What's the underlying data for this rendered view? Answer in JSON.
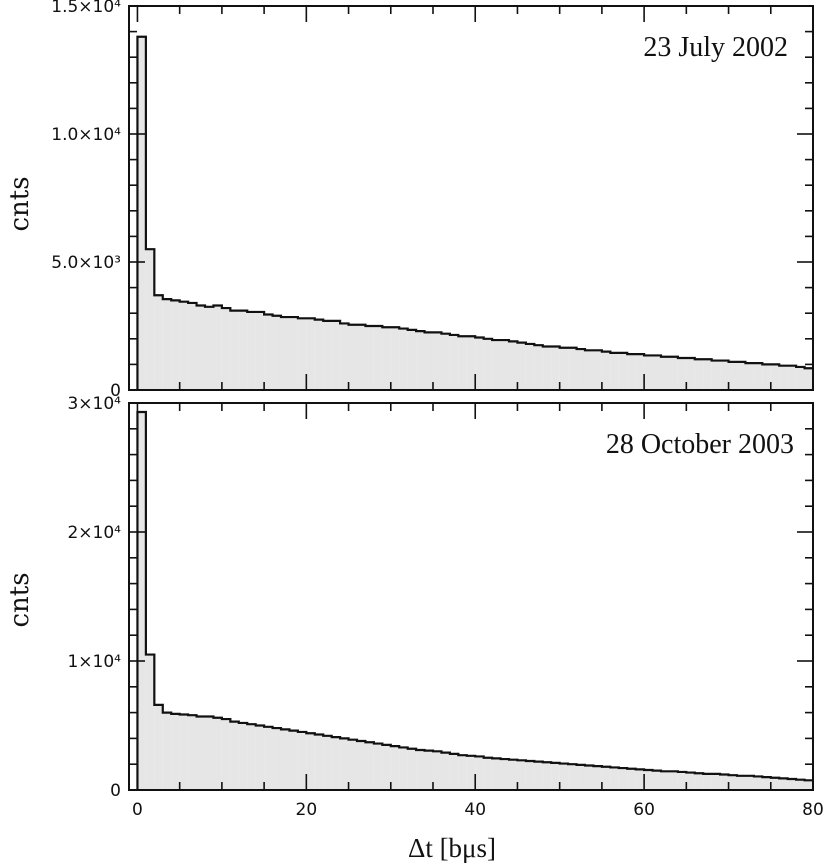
{
  "chart_data": [
    {
      "type": "area",
      "title": "23 July 2002",
      "xlabel": "",
      "ylabel": "cnts",
      "xlim": [
        -1,
        80
      ],
      "ylim": [
        0,
        15000
      ],
      "y_ticks": [
        {
          "value": 0,
          "label": "0"
        },
        {
          "value": 5000,
          "label": "5.0×10³"
        },
        {
          "value": 10000,
          "label": "1.0×10⁴"
        },
        {
          "value": 15000,
          "label": "1.5×10⁴"
        }
      ],
      "bin_width": 1,
      "bins_start": 0,
      "values": [
        13800,
        5500,
        3700,
        3550,
        3500,
        3450,
        3400,
        3300,
        3250,
        3300,
        3200,
        3100,
        3100,
        3050,
        3050,
        2950,
        2900,
        2850,
        2850,
        2800,
        2800,
        2750,
        2700,
        2700,
        2600,
        2550,
        2550,
        2500,
        2500,
        2450,
        2450,
        2400,
        2350,
        2300,
        2250,
        2250,
        2200,
        2150,
        2100,
        2100,
        2050,
        2000,
        1950,
        1950,
        1900,
        1850,
        1800,
        1750,
        1700,
        1700,
        1650,
        1650,
        1600,
        1550,
        1550,
        1500,
        1450,
        1450,
        1400,
        1400,
        1350,
        1350,
        1300,
        1300,
        1250,
        1250,
        1200,
        1200,
        1150,
        1150,
        1100,
        1100,
        1050,
        1050,
        1000,
        1000,
        950,
        950,
        900,
        850
      ]
    },
    {
      "type": "area",
      "title": "28 October 2003",
      "xlabel": "Δt [bμs]",
      "ylabel": "cnts",
      "xlim": [
        -1,
        80
      ],
      "ylim": [
        0,
        30000
      ],
      "x_ticks": [
        {
          "value": 0,
          "label": "0"
        },
        {
          "value": 20,
          "label": "20"
        },
        {
          "value": 40,
          "label": "40"
        },
        {
          "value": 60,
          "label": "60"
        },
        {
          "value": 80,
          "label": "80"
        }
      ],
      "y_ticks": [
        {
          "value": 0,
          "label": "0"
        },
        {
          "value": 10000,
          "label": "1×10⁴"
        },
        {
          "value": 20000,
          "label": "2×10⁴"
        },
        {
          "value": 30000,
          "label": "3×10⁴"
        }
      ],
      "bin_width": 1,
      "bins_start": 0,
      "values": [
        29300,
        10500,
        6600,
        6000,
        5900,
        5850,
        5800,
        5700,
        5700,
        5600,
        5500,
        5300,
        5200,
        5100,
        5000,
        4900,
        4800,
        4700,
        4600,
        4500,
        4400,
        4300,
        4200,
        4100,
        4000,
        3900,
        3800,
        3700,
        3600,
        3500,
        3400,
        3300,
        3200,
        3100,
        3050,
        3000,
        2900,
        2800,
        2700,
        2650,
        2600,
        2500,
        2450,
        2400,
        2350,
        2300,
        2250,
        2200,
        2150,
        2100,
        2050,
        2000,
        1950,
        1900,
        1850,
        1800,
        1750,
        1700,
        1650,
        1600,
        1550,
        1500,
        1450,
        1450,
        1400,
        1350,
        1300,
        1250,
        1250,
        1200,
        1150,
        1100,
        1100,
        1050,
        1000,
        950,
        900,
        850,
        800,
        750
      ]
    }
  ],
  "colors": {
    "fill": "#e6e6e6",
    "line": "#111111",
    "background": "#ffffff"
  }
}
